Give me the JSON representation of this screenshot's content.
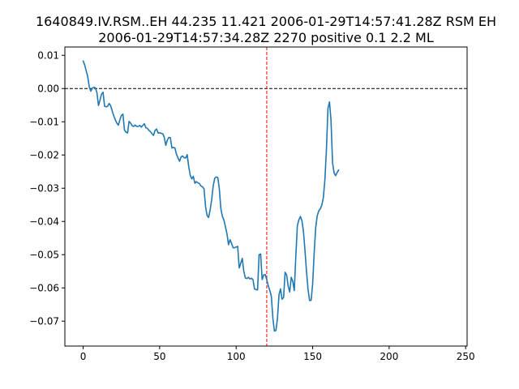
{
  "chart_data": {
    "type": "line",
    "title_lines": [
      "1640849.IV.RSM..EH 44.235 11.421 2006-01-29T14:57:41.28Z RSM EH",
      "2006-01-29T14:57:34.28Z 2270 positive 0.1 2.2 ML"
    ],
    "xlabel": "",
    "ylabel": "",
    "xlim": [
      -11.95,
      250.95
    ],
    "ylim": [
      -0.0775,
      0.0125
    ],
    "xticks": [
      0,
      50,
      100,
      150,
      200,
      250
    ],
    "xtick_labels": [
      "0",
      "50",
      "100",
      "150",
      "200",
      "250"
    ],
    "yticks": [
      0.01,
      0.0,
      -0.01,
      -0.02,
      -0.03,
      -0.04,
      -0.05,
      -0.06,
      -0.07
    ],
    "ytick_labels": [
      "0.01",
      "0.00",
      "−0.01",
      "−0.02",
      "−0.03",
      "−0.04",
      "−0.05",
      "−0.06",
      "−0.07"
    ],
    "grid": false,
    "legend": "none",
    "series": [
      {
        "color": "#1f77b4",
        "y": [
          0.0083,
          0.0071,
          0.0053,
          0.0036,
          0.0005,
          -0.0008,
          0.0001,
          0.0004,
          0.0002,
          -0.0012,
          -0.0051,
          -0.0035,
          -0.0017,
          -0.0011,
          -0.0053,
          -0.0055,
          -0.0053,
          -0.0045,
          -0.0052,
          -0.0068,
          -0.0082,
          -0.0094,
          -0.0104,
          -0.011,
          -0.0094,
          -0.0081,
          -0.0077,
          -0.0125,
          -0.0131,
          -0.0134,
          -0.0099,
          -0.0104,
          -0.0112,
          -0.0114,
          -0.011,
          -0.0114,
          -0.0114,
          -0.0111,
          -0.0116,
          -0.0111,
          -0.0106,
          -0.0118,
          -0.012,
          -0.0126,
          -0.013,
          -0.0136,
          -0.0141,
          -0.0126,
          -0.0122,
          -0.0134,
          -0.0133,
          -0.0135,
          -0.0136,
          -0.0146,
          -0.0171,
          -0.0155,
          -0.0147,
          -0.0148,
          -0.0179,
          -0.0177,
          -0.0179,
          -0.0198,
          -0.0209,
          -0.0219,
          -0.0206,
          -0.0203,
          -0.0208,
          -0.0209,
          -0.0199,
          -0.0235,
          -0.0261,
          -0.0272,
          -0.0264,
          -0.0285,
          -0.028,
          -0.0284,
          -0.0286,
          -0.0293,
          -0.0296,
          -0.0302,
          -0.0356,
          -0.0382,
          -0.0388,
          -0.0365,
          -0.0335,
          -0.0293,
          -0.027,
          -0.0266,
          -0.0268,
          -0.0302,
          -0.0361,
          -0.0385,
          -0.0396,
          -0.0416,
          -0.0437,
          -0.047,
          -0.0455,
          -0.0466,
          -0.0479,
          -0.0479,
          -0.0477,
          -0.0475,
          -0.054,
          -0.0526,
          -0.0511,
          -0.055,
          -0.057,
          -0.0572,
          -0.0568,
          -0.0573,
          -0.0571,
          -0.0575,
          -0.0603,
          -0.0605,
          -0.0606,
          -0.05,
          -0.0498,
          -0.0575,
          -0.0561,
          -0.056,
          -0.0575,
          -0.0594,
          -0.0608,
          -0.0625,
          -0.0691,
          -0.073,
          -0.0728,
          -0.0692,
          -0.0621,
          -0.0603,
          -0.0634,
          -0.0629,
          -0.0553,
          -0.0561,
          -0.0595,
          -0.0612,
          -0.0568,
          -0.058,
          -0.0608,
          -0.0505,
          -0.0413,
          -0.0395,
          -0.0385,
          -0.0398,
          -0.0431,
          -0.0488,
          -0.0552,
          -0.0605,
          -0.0638,
          -0.0637,
          -0.0588,
          -0.0495,
          -0.0418,
          -0.0383,
          -0.0368,
          -0.0362,
          -0.0351,
          -0.0328,
          -0.0275,
          -0.0185,
          -0.006,
          -0.004,
          -0.0096,
          -0.0223,
          -0.0254,
          -0.0262,
          -0.0253,
          -0.0245
        ]
      }
    ],
    "annotations": [
      {
        "kind": "hline",
        "y": 0.0,
        "color": "#000000",
        "style": "dashed"
      },
      {
        "kind": "vline",
        "x": 120,
        "color": "#ff0000",
        "style": "dashed"
      }
    ]
  }
}
